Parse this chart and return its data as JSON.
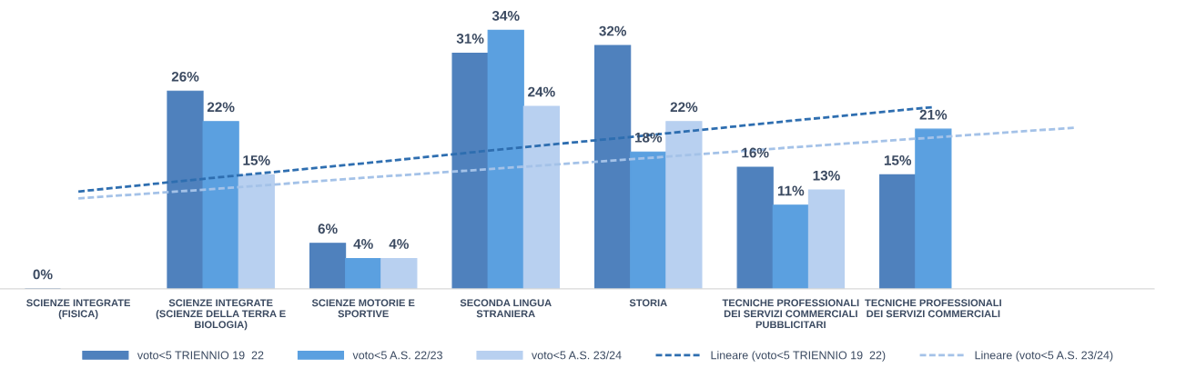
{
  "chart_data": {
    "type": "bar",
    "categories": [
      "SCIENZE INTEGRATE\n(FISICA)",
      "SCIENZE INTEGRATE\n(SCIENZE DELLA TERRA E\nBIOLOGIA)",
      "SCIENZE MOTORIE E\nSPORTIVE",
      "SECONDA LINGUA\nSTRANIERA",
      "STORIA",
      "TECNICHE PROFESSIONALI\nDEI SERVIZI COMMERCIALI\nPUBBLICITARI",
      "TECNICHE PROFESSIONALI\nDEI SERVIZI COMMERCIALI",
      null
    ],
    "series": [
      {
        "name": "voto<5 TRIENNIO 19  22",
        "color": "#4f81bd",
        "values": [
          0,
          26,
          6,
          31,
          32,
          16,
          15,
          null
        ],
        "value_labels": [
          "0%",
          "26%",
          "6%",
          "31%",
          "32%",
          "16%",
          "15%",
          null
        ]
      },
      {
        "name": "voto<5 A.S. 22/23",
        "color": "#5ba0e0",
        "values": [
          null,
          22,
          4,
          34,
          18,
          11,
          21,
          null
        ],
        "value_labels": [
          null,
          "22%",
          "4%",
          "34%",
          "18%",
          "11%",
          "21%",
          null
        ]
      },
      {
        "name": "voto<5 A.S. 23/24",
        "color": "#b8d0f0",
        "values": [
          null,
          15,
          4,
          24,
          22,
          13,
          null,
          null
        ],
        "value_labels": [
          null,
          "15%",
          "4%",
          "24%",
          "22%",
          "13%",
          null,
          null
        ]
      },
      {
        "name": "Lineare (voto<5 TRIENNIO 19  22)",
        "type": "line",
        "line_style": "dashed",
        "color": "#2e6eb0",
        "values": [
          12.8,
          14.7,
          16.5,
          18.4,
          20.2,
          22.1,
          23.9,
          null
        ]
      },
      {
        "name": "Lineare (voto<5 A.S. 23/24)",
        "type": "line",
        "line_style": "dashed",
        "color": "#a4c2e8",
        "values": [
          11.9,
          13.2,
          14.6,
          15.9,
          17.2,
          18.6,
          19.9,
          21.2
        ]
      }
    ],
    "tick_labels": "x",
    "grid": false,
    "legend": "bottom"
  }
}
